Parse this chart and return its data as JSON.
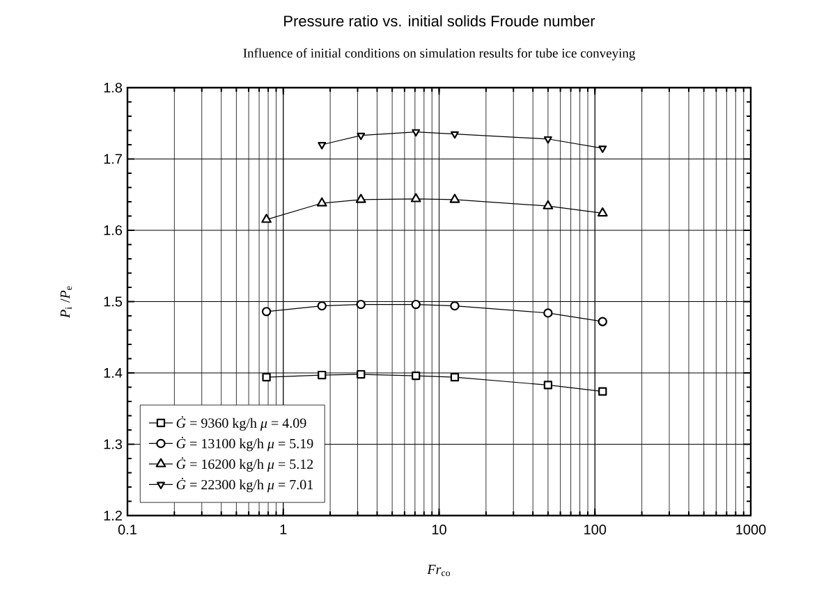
{
  "chart_data": {
    "type": "line",
    "title": "Pressure ratio vs. initial solids Froude number",
    "subtitle": "Influence of initial conditions on simulation results for tube ice conveying",
    "xlabel": "*Fr*$_{co}$",
    "ylabel": "*P*$_{i}$ /*P*$_{e}$",
    "x": [
      0.78,
      1.77,
      3.15,
      7.1,
      12.6,
      50,
      112
    ],
    "series": [
      {
        "name": "*Ġ* = 9360 kg/h   *μ* = 4.09",
        "color": "#000000",
        "marker": "square",
        "values": [
          1.394,
          1.397,
          1.398,
          1.396,
          1.394,
          1.383,
          1.374
        ]
      },
      {
        "name": "*Ġ* = 13100 kg/h *μ* = 5.19",
        "color": "#000000",
        "marker": "circle",
        "values": [
          1.486,
          1.494,
          1.496,
          1.496,
          1.494,
          1.484,
          1.472
        ]
      },
      {
        "name": "*Ġ* = 16200 kg/h *μ* = 5.12",
        "color": "#000000",
        "marker": "triangle",
        "values": [
          1.615,
          1.638,
          1.643,
          1.644,
          1.643,
          1.634,
          1.624
        ]
      },
      {
        "name": "*Ġ* = 22300 kg/h *μ* = 7.01",
        "color": "#000000",
        "marker": "triangle down",
        "x": [
          1.77,
          3.15,
          7.1,
          12.6,
          50,
          112
        ],
        "values": [
          1.72,
          1.733,
          1.738,
          1.735,
          1.728,
          1.715
        ]
      }
    ],
    "log": "x",
    "xlim": [
      0.1,
      1000
    ],
    "xticks": [
      0.1,
      1,
      10,
      100,
      1000
    ],
    "ylim": [
      1.2,
      1.8
    ],
    "yticks": [
      1.2,
      1.3,
      1.4,
      1.5,
      1.6,
      1.7,
      1.8
    ],
    "grid": true,
    "legend": "bottom left",
    "line_style": "solid"
  }
}
